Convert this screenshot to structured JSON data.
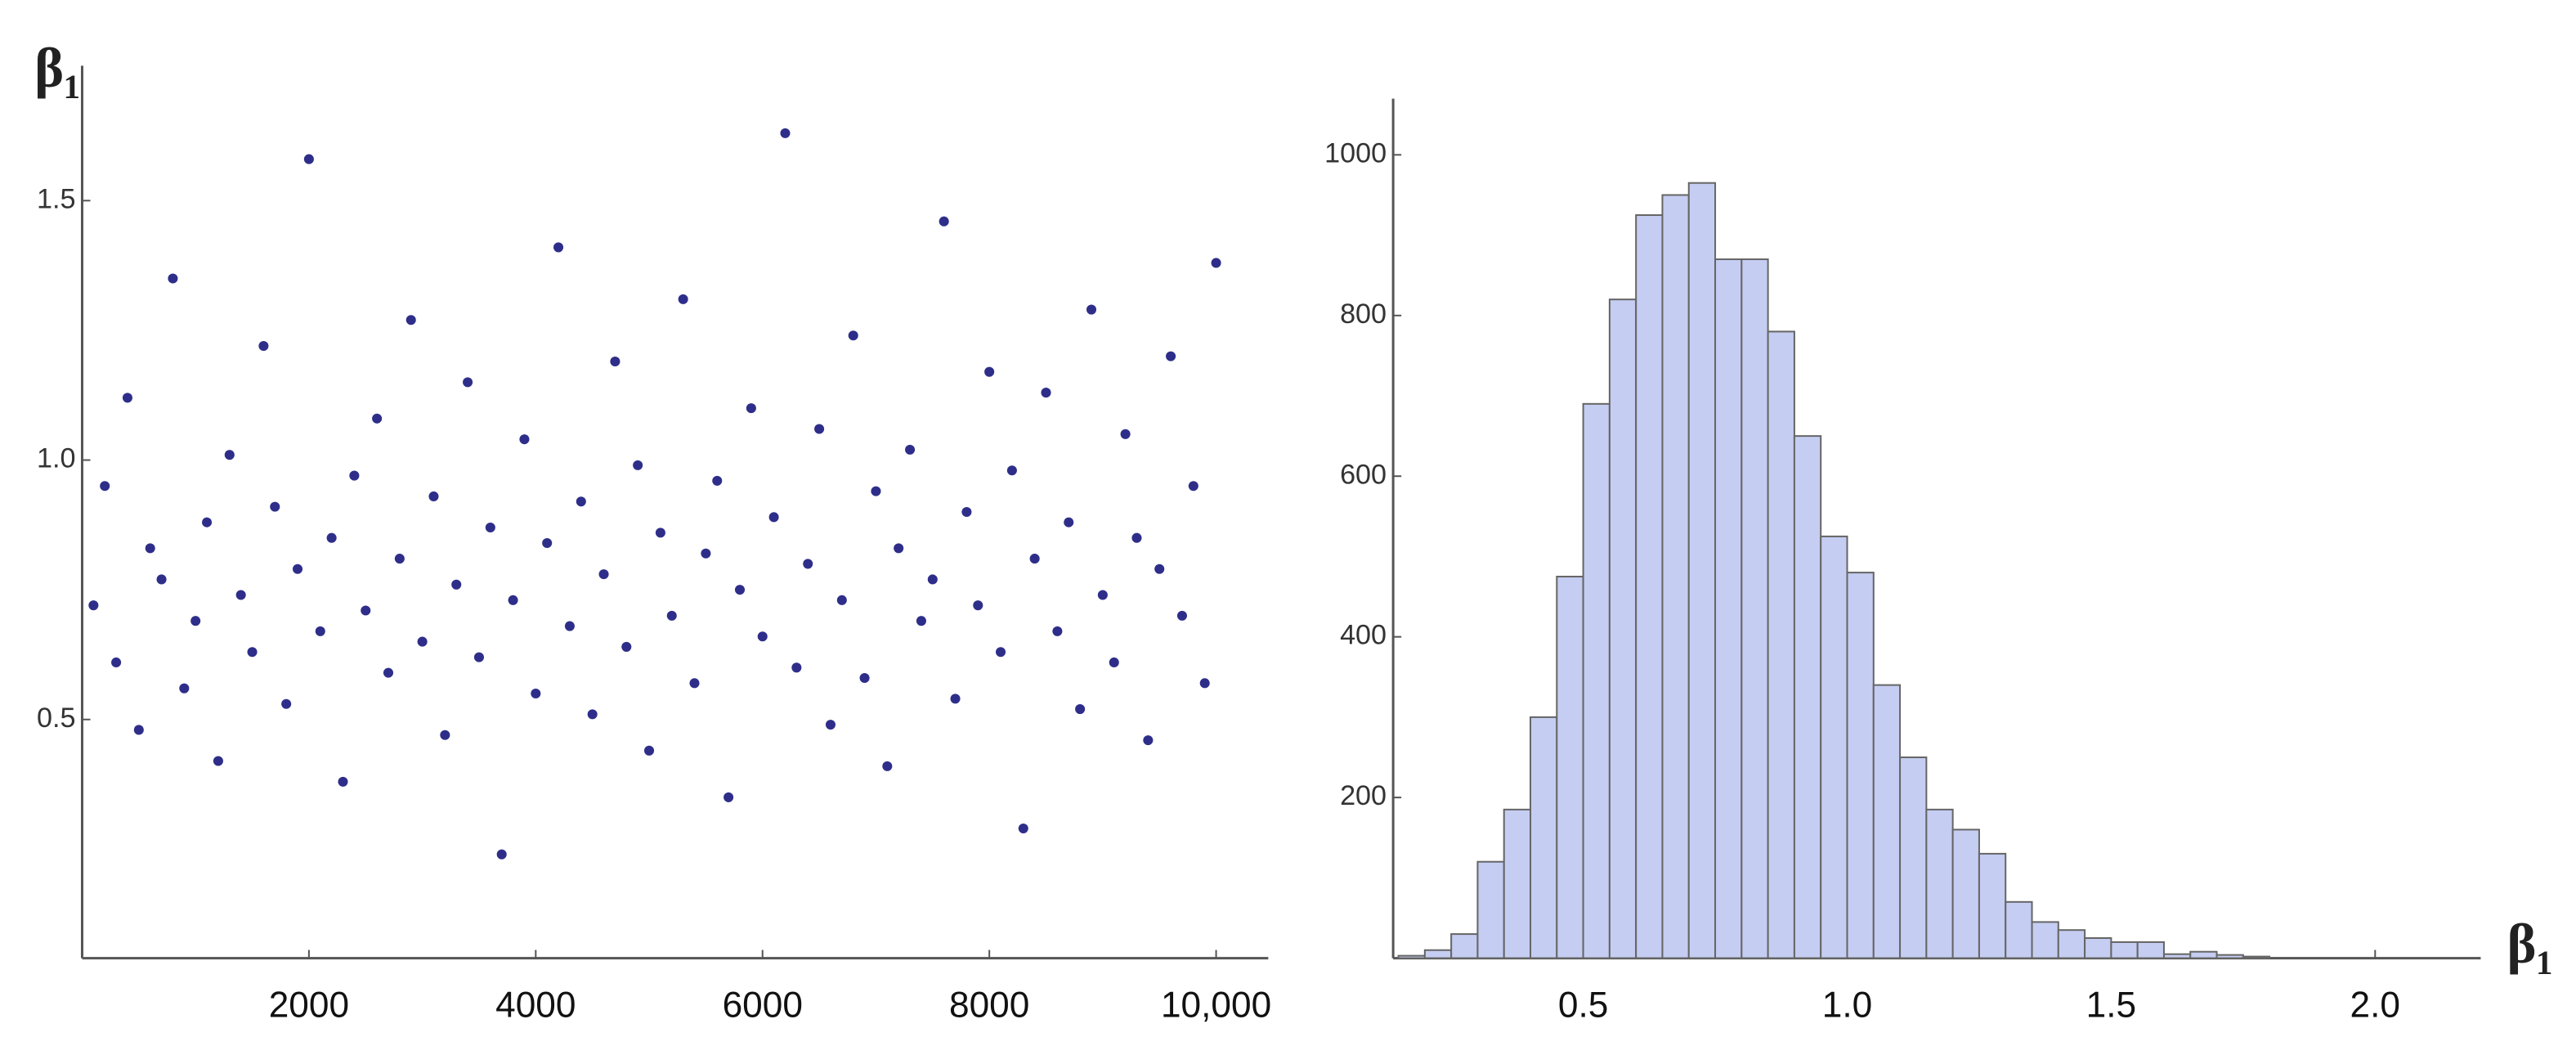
{
  "chart_data": [
    {
      "type": "scatter",
      "y_label": "β₁",
      "color": "#2e2e8a",
      "xlim": [
        0,
        10460
      ],
      "ylim": [
        0.04,
        1.76
      ],
      "xticks": [
        2000,
        4000,
        6000,
        8000,
        {
          "value": 10000,
          "label": "10,000"
        }
      ],
      "yticks": [
        0.5,
        {
          "value": 1,
          "label": "1.0"
        },
        1.5
      ],
      "x": [
        100,
        200,
        300,
        400,
        500,
        600,
        700,
        800,
        900,
        1000,
        1100,
        1200,
        1300,
        1400,
        1500,
        1600,
        1700,
        1800,
        1900,
        2000,
        2100,
        2200,
        2300,
        2400,
        2500,
        2600,
        2700,
        2800,
        2900,
        3000,
        3100,
        3200,
        3300,
        3400,
        3500,
        3600,
        3700,
        3800,
        3900,
        4000,
        4100,
        4200,
        4300,
        4400,
        4500,
        4600,
        4700,
        4800,
        4900,
        5000,
        5100,
        5200,
        5300,
        5400,
        5500,
        5600,
        5700,
        5800,
        5900,
        6000,
        6100,
        6200,
        6300,
        6400,
        6500,
        6600,
        6700,
        6800,
        6900,
        7000,
        7100,
        7200,
        7300,
        7400,
        7500,
        7600,
        7700,
        7800,
        7900,
        8000,
        8100,
        8200,
        8300,
        8400,
        8500,
        8600,
        8700,
        8800,
        8900,
        9000,
        9100,
        9200,
        9300,
        9400,
        9500,
        9600,
        9700,
        9800,
        9900,
        10000
      ],
      "values": [
        0.72,
        0.95,
        0.61,
        1.12,
        0.48,
        0.83,
        0.77,
        1.35,
        0.56,
        0.69,
        0.88,
        0.42,
        1.01,
        0.74,
        0.63,
        1.22,
        0.91,
        0.53,
        0.79,
        1.58,
        0.67,
        0.85,
        0.38,
        0.97,
        0.71,
        1.08,
        0.59,
        0.81,
        1.27,
        0.65,
        0.93,
        0.47,
        0.76,
        1.15,
        0.62,
        0.87,
        0.24,
        0.73,
        1.04,
        0.55,
        0.84,
        1.41,
        0.68,
        0.92,
        0.51,
        0.78,
        1.19,
        0.64,
        0.99,
        0.44,
        0.86,
        0.7,
        1.31,
        0.57,
        0.82,
        0.96,
        0.35,
        0.75,
        1.1,
        0.66,
        0.89,
        1.63,
        0.6,
        0.8,
        1.06,
        0.49,
        0.73,
        1.24,
        0.58,
        0.94,
        0.41,
        0.83,
        1.02,
        0.69,
        0.77,
        1.46,
        0.54,
        0.9,
        0.72,
        1.17,
        0.63,
        0.98,
        0.29,
        0.81,
        1.13,
        0.67,
        0.88,
        0.52,
        1.29,
        0.74,
        0.61,
        1.05,
        0.85,
        0.46,
        0.79,
        1.2,
        0.7,
        0.95,
        0.57,
        1.38
      ]
    },
    {
      "type": "histogram",
      "x_label": "β₁",
      "color": "#c5cdf2",
      "xlim": [
        0.14,
        2.2
      ],
      "ylim": [
        0,
        1070
      ],
      "xticks": [
        0.5,
        {
          "value": 1,
          "label": "1.0"
        },
        1.5,
        {
          "value": 2,
          "label": "2.0"
        }
      ],
      "yticks": [
        200,
        400,
        600,
        800,
        1000
      ],
      "bins": [
        0.15,
        0.2,
        0.25,
        0.3,
        0.35,
        0.4,
        0.45,
        0.5,
        0.55,
        0.6,
        0.65,
        0.7,
        0.75,
        0.8,
        0.85,
        0.9,
        0.95,
        1,
        1.05,
        1.1,
        1.15,
        1.2,
        1.25,
        1.3,
        1.35,
        1.4,
        1.45,
        1.5,
        1.55,
        1.6,
        1.65,
        1.7,
        1.75,
        1.8
      ],
      "values": [
        3,
        10,
        30,
        120,
        185,
        300,
        475,
        690,
        820,
        925,
        950,
        965,
        870,
        870,
        780,
        650,
        525,
        480,
        340,
        250,
        185,
        160,
        130,
        70,
        45,
        35,
        25,
        20,
        20,
        5,
        8,
        4,
        2
      ]
    }
  ]
}
